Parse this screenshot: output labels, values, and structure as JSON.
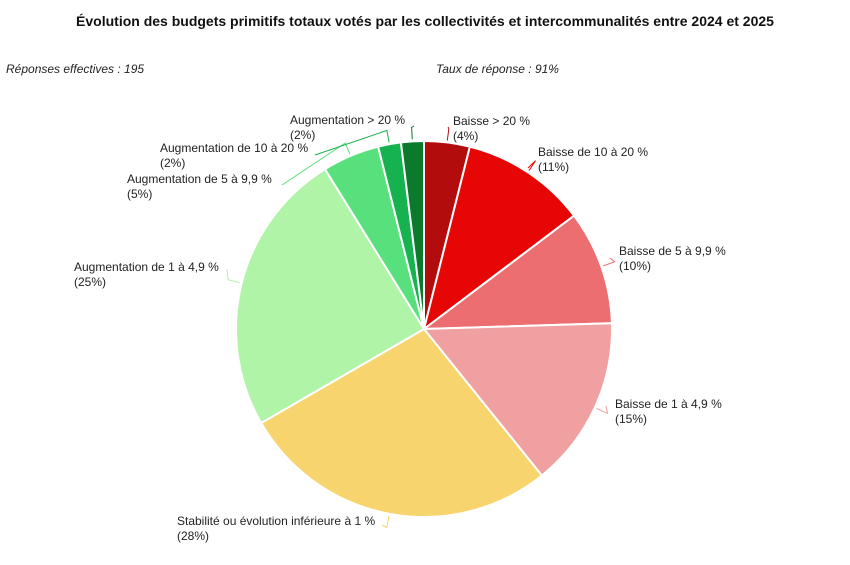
{
  "chart_data": {
    "type": "pie",
    "title": "Évolution des budgets primitifs totaux votés par les collectivités et intercommunalités entre 2024 et 2025",
    "responses": "Réponses effectives : 195",
    "response_rate": "Taux de réponse : 91%",
    "slices": [
      {
        "label": "Baisse > 20 %",
        "value": 4,
        "pct_label": "(4%)",
        "color": "#b30c0c"
      },
      {
        "label": "Baisse de 10 à 20 %",
        "value": 11,
        "pct_label": "(11%)",
        "color": "#e60606"
      },
      {
        "label": "Baisse de 5 à 9,9 %",
        "value": 10,
        "pct_label": "(10%)",
        "color": "#ec6e70"
      },
      {
        "label": "Baisse de 1 à 4,9 %",
        "value": 15,
        "pct_label": "(15%)",
        "color": "#f0a0a1"
      },
      {
        "label": "Stabilité ou évolution inférieure à 1 %",
        "value": 28,
        "pct_label": "(28%)",
        "color": "#f8d46f"
      },
      {
        "label": "Augmentation de 1 à 4,9 %",
        "value": 25,
        "pct_label": "(25%)",
        "color": "#b0f4a8"
      },
      {
        "label": "Augmentation de 5 à 9,9 %",
        "value": 5,
        "pct_label": "(5%)",
        "color": "#58e07c"
      },
      {
        "label": "Augmentation de 10 à 20 %",
        "value": 2,
        "pct_label": "(2%)",
        "color": "#16b24f"
      },
      {
        "label": "Augmentation > 20 %",
        "value": 2,
        "pct_label": "(2%)",
        "color": "#0b7a2d"
      }
    ]
  }
}
